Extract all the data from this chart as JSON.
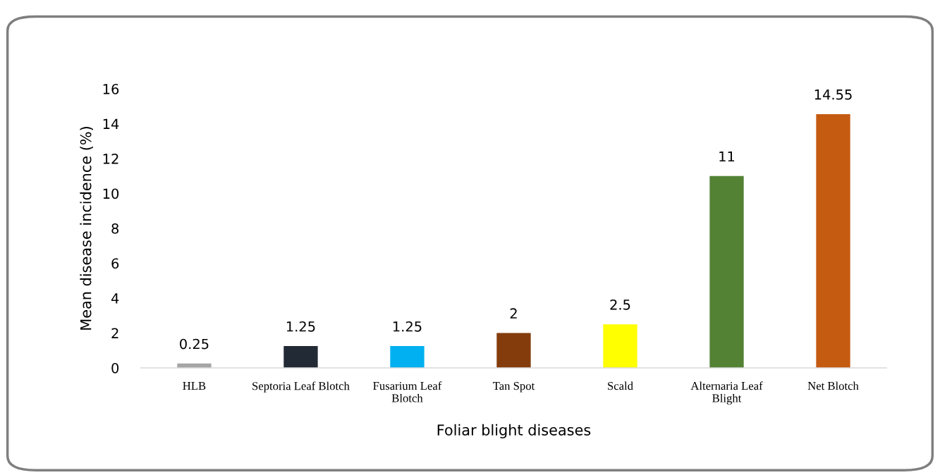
{
  "chart_data": {
    "type": "bar",
    "xlabel": "Foliar blight diseases",
    "ylabel": "Mean disease incidence (%)",
    "categories": [
      "HLB",
      "Septoria Leaf Blotch",
      "Fusarium Leaf\nBlotch",
      "Tan Spot",
      "Scald",
      "Alternaria Leaf\nBlight",
      "Net Blotch"
    ],
    "values": [
      0.25,
      1.25,
      1.25,
      2,
      2.5,
      11,
      14.55
    ],
    "colors": [
      "#a5a5a5",
      "#222a35",
      "#00b0f0",
      "#843c0c",
      "#ffff00",
      "#548235",
      "#c55a11"
    ],
    "ylim": [
      0,
      16
    ],
    "yticks": [
      0,
      2,
      4,
      6,
      8,
      10,
      12,
      14,
      16
    ],
    "grid": false,
    "legend": false,
    "data_labels": true
  }
}
